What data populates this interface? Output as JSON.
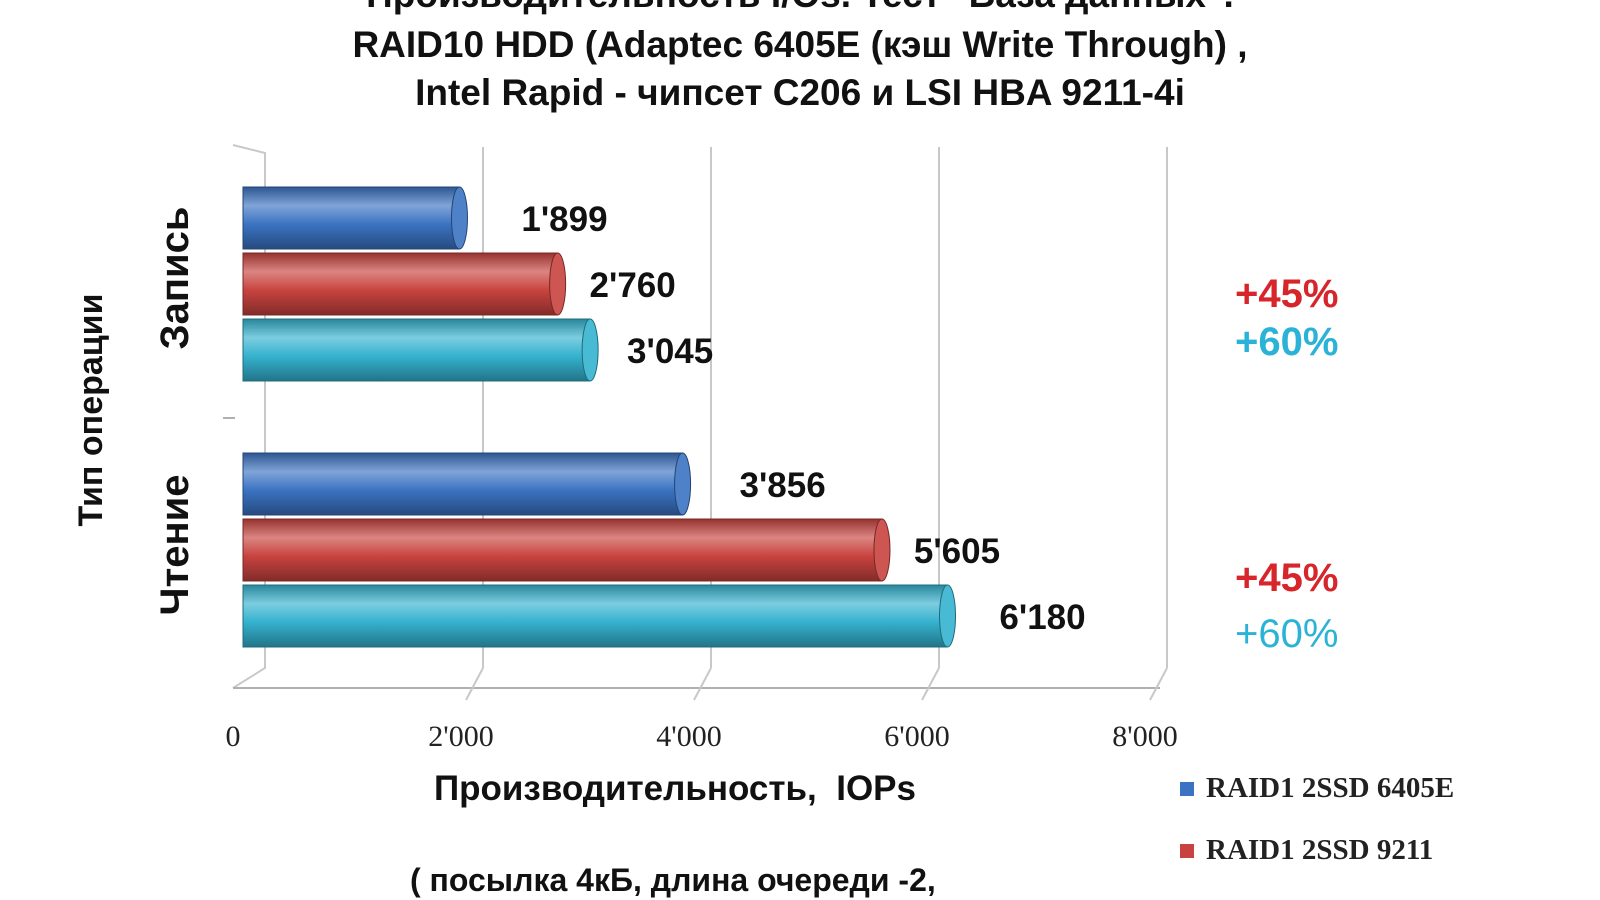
{
  "chart_data": {
    "type": "bar",
    "orientation": "horizontal",
    "title_lines": [
      "Производительность I/Os. Тест \"База данных\".",
      "RAID10 HDD (Adaptec 6405E (кэш Write Through) ,",
      "Intel Rapid - чипсет C206 и LSI HBA 9211-4i"
    ],
    "categories": [
      "Запись",
      "Чтение"
    ],
    "series": [
      {
        "name": "RAID1 2SSD 6405E",
        "values": [
          1899,
          3856
        ],
        "labels": [
          "1'899",
          "3'856"
        ],
        "color": "#3b73c2"
      },
      {
        "name": "RAID1 2SSD 9211",
        "values": [
          2760,
          5605
        ],
        "labels": [
          "2'760",
          "5'605"
        ],
        "color": "#c8433f"
      },
      {
        "name": "",
        "values": [
          3045,
          6180
        ],
        "labels": [
          "3'045",
          "6'180"
        ],
        "color": "#35b2cf"
      }
    ],
    "xlim": [
      0,
      8000
    ],
    "x_ticks": [
      0,
      2000,
      4000,
      6000,
      8000
    ],
    "x_tick_labels": [
      "0",
      "2'000",
      "4'000",
      "6'000",
      "8'000"
    ],
    "xlabel": "Производительность,  IOPs",
    "ylabel": "Тип операции",
    "grid": true,
    "legend_position": "bottom-right",
    "annotations": [
      {
        "text": "+45%",
        "color": "#d7262b",
        "category": "Запись"
      },
      {
        "text": "+60%",
        "color": "#2ab3d6",
        "category": "Запись"
      },
      {
        "text": "+45%",
        "color": "#d7262b",
        "category": "Чтение"
      },
      {
        "text": "+60%",
        "color": "#2ab3d6",
        "category": "Чтение"
      }
    ],
    "footnote": "( посылка 4кБ, длина очереди -2,"
  }
}
